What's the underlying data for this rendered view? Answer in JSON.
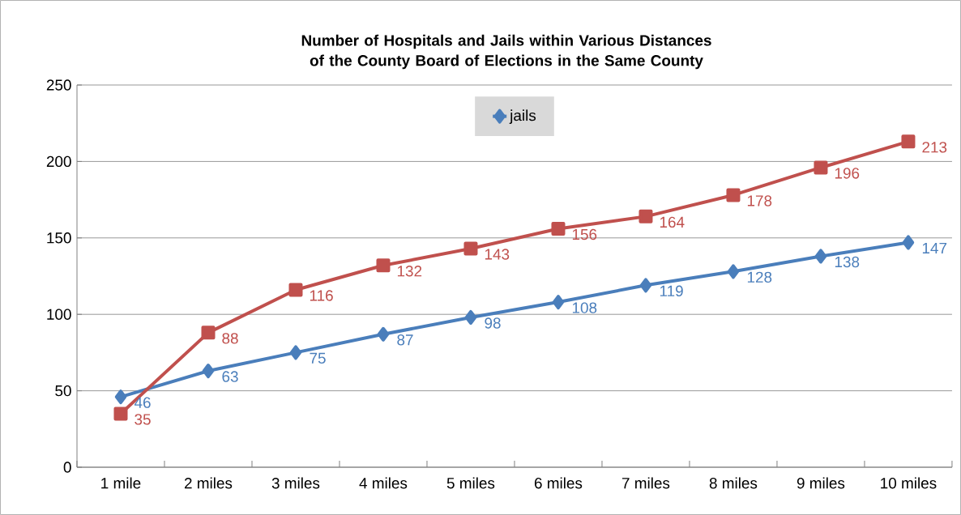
{
  "chart_data": {
    "type": "line",
    "title": "Number of Hospitals and Jails within Various Distances of the County Board of Elections in the Same County",
    "categories": [
      "1 mile",
      "2 miles",
      "3 miles",
      "4 miles",
      "5 miles",
      "6 miles",
      "7 miles",
      "8 miles",
      "9 miles",
      "10 miles"
    ],
    "series": [
      {
        "name": "jails",
        "color": "#4a7ebb",
        "marker": "diamond",
        "values": [
          46,
          63,
          75,
          87,
          98,
          108,
          119,
          128,
          138,
          147
        ]
      },
      {
        "color": "#c0504d",
        "marker": "square",
        "values": [
          35,
          88,
          116,
          132,
          143,
          156,
          164,
          178,
          196,
          213
        ]
      }
    ],
    "ylim": [
      0,
      250
    ],
    "yticks": [
      0,
      50,
      100,
      150,
      200,
      250
    ],
    "grid": "y",
    "legend": "top",
    "data_labels": true
  }
}
